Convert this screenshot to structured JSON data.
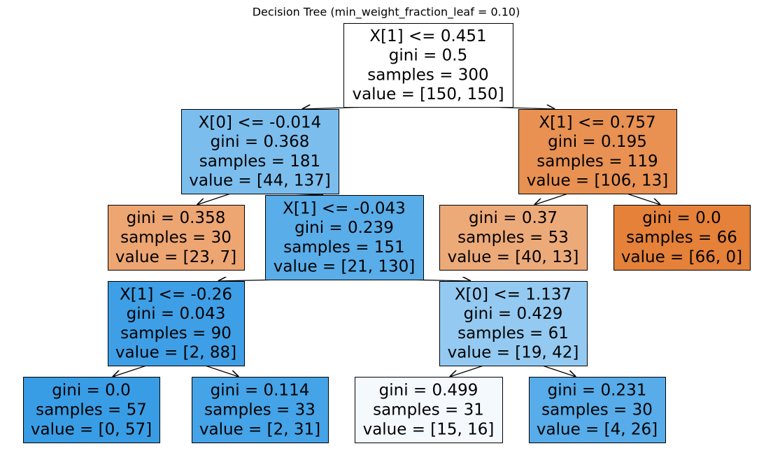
{
  "title": "Decision Tree (min_weight_fraction_leaf = 0.10)",
  "nodes": [
    {
      "lines": [
        "X[1] <= 0.451",
        "gini = 0.5",
        "samples = 300",
        "value = [150, 150]"
      ],
      "color": "#ffffff"
    },
    {
      "lines": [
        "X[0] <= -0.014",
        "gini = 0.368",
        "samples = 181",
        "value = [44, 137]"
      ],
      "color": "#7bbeee"
    },
    {
      "lines": [
        "X[1] <= 0.757",
        "gini = 0.195",
        "samples = 119",
        "value = [106, 13]"
      ],
      "color": "#e89152"
    },
    {
      "lines": [
        "gini = 0.358",
        "samples = 30",
        "value = [23, 7]"
      ],
      "color": "#eda572"
    },
    {
      "lines": [
        "X[1] <= -0.043",
        "gini = 0.239",
        "samples = 151",
        "value = [21, 130]"
      ],
      "color": "#59ade9"
    },
    {
      "lines": [
        "gini = 0.37",
        "samples = 53",
        "value = [40, 13]"
      ],
      "color": "#edaa79"
    },
    {
      "lines": [
        "gini = 0.0",
        "samples = 66",
        "value = [66, 0]"
      ],
      "color": "#e58139"
    },
    {
      "lines": [
        "X[1] <= -0.26",
        "gini = 0.043",
        "samples = 90",
        "value = [2, 88]"
      ],
      "color": "#3e9fe6"
    },
    {
      "lines": [
        "X[0] <= 1.137",
        "gini = 0.429",
        "samples = 61",
        "value = [19, 42]"
      ],
      "color": "#94caf1"
    },
    {
      "lines": [
        "gini = 0.0",
        "samples = 57",
        "value = [0, 57]"
      ],
      "color": "#399de5"
    },
    {
      "lines": [
        "gini = 0.114",
        "samples = 33",
        "value = [2, 31]"
      ],
      "color": "#45a3e7"
    },
    {
      "lines": [
        "gini = 0.499",
        "samples = 31",
        "value = [15, 16]"
      ],
      "color": "#f4f9fe"
    },
    {
      "lines": [
        "gini = 0.231",
        "samples = 30",
        "value = [4, 26]"
      ],
      "color": "#57ace9"
    }
  ]
}
